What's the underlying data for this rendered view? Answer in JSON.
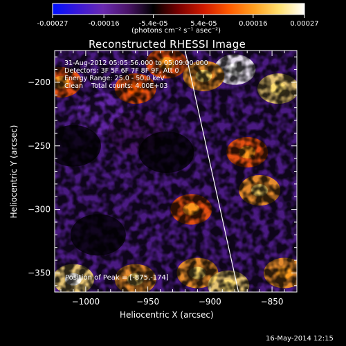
{
  "colorbar": {
    "tick_labels": [
      "-0.00027",
      "-0.00016",
      "-5.4e-05",
      "5.4e-05",
      "0.00016",
      "0.00027"
    ],
    "units_label": "(photons cm⁻² s⁻¹ asec⁻²)",
    "range": [
      -0.00027,
      0.00027
    ],
    "colormap": [
      "#0010ff",
      "#3a18d8",
      "#6a2ab0",
      "#4a1468",
      "#000000",
      "#7a0000",
      "#d01a00",
      "#ff5a00",
      "#ffa020",
      "#ffe070",
      "#ffffff"
    ]
  },
  "plot": {
    "title": "Reconstructed RHESSI Image",
    "xlabel": "Heliocentric X (arcsec)",
    "ylabel": "Heliocentric Y (arcsec)",
    "info": [
      "31-Aug-2012 05:05:56.000 to 05:09:00.000",
      "Detectors: 3F 5F 6F 7F 8F 9F, Att 0",
      "Energy Range: 25.0 - 50.0 keV",
      "Clean    Total counts: 4.00E+03"
    ],
    "peak_label": "Position of Peak = [-875,-174]",
    "footer_date": "16-May-2014 12:15"
  },
  "chart_data": {
    "type": "heatmap",
    "title": "Reconstructed RHESSI Image",
    "xlabel": "Heliocentric X (arcsec)",
    "ylabel": "Heliocentric Y (arcsec)",
    "xlim": [
      -1025,
      -830
    ],
    "ylim": [
      -365,
      -175
    ],
    "x_ticks": [
      -1000,
      -950,
      -900,
      -850
    ],
    "y_ticks": [
      -350,
      -300,
      -250,
      -200
    ],
    "x_tick_labels": [
      "−1000",
      "−950",
      "−900",
      "−850"
    ],
    "y_tick_labels": [
      "−350",
      "−300",
      "−250",
      "−200"
    ],
    "grid": false,
    "colorbar_range": [
      -0.00027,
      0.00027
    ],
    "colorbar_units": "photons cm-2 s-1 asec-2",
    "limb_line": [
      [
        -920,
        -175
      ],
      [
        -877,
        -365
      ]
    ],
    "peak": [
      -875,
      -174
    ],
    "bright_regions": [
      {
        "x": -880,
        "y": -190,
        "level": 0.9
      },
      {
        "x": -905,
        "y": -195,
        "level": 0.6
      },
      {
        "x": -845,
        "y": -205,
        "level": 0.7
      },
      {
        "x": -935,
        "y": -185,
        "level": 0.4
      },
      {
        "x": -860,
        "y": -285,
        "level": 0.65
      },
      {
        "x": -870,
        "y": -255,
        "level": 0.45
      },
      {
        "x": -915,
        "y": -300,
        "level": 0.45
      },
      {
        "x": -960,
        "y": -205,
        "level": 0.3
      },
      {
        "x": -1010,
        "y": -355,
        "level": 0.85
      },
      {
        "x": -960,
        "y": -355,
        "level": 0.65
      },
      {
        "x": -910,
        "y": -350,
        "level": 0.6
      },
      {
        "x": -885,
        "y": -360,
        "level": 0.7
      },
      {
        "x": -1020,
        "y": -200,
        "level": 0.35
      },
      {
        "x": -840,
        "y": -350,
        "level": 0.5
      }
    ],
    "dim_regions": [
      {
        "x": -985,
        "y": -225,
        "level": -0.55
      },
      {
        "x": -960,
        "y": -240,
        "level": -0.35
      },
      {
        "x": -935,
        "y": -255,
        "level": -0.3
      },
      {
        "x": -990,
        "y": -320,
        "level": -0.3
      },
      {
        "x": -1010,
        "y": -250,
        "level": -0.3
      }
    ]
  }
}
